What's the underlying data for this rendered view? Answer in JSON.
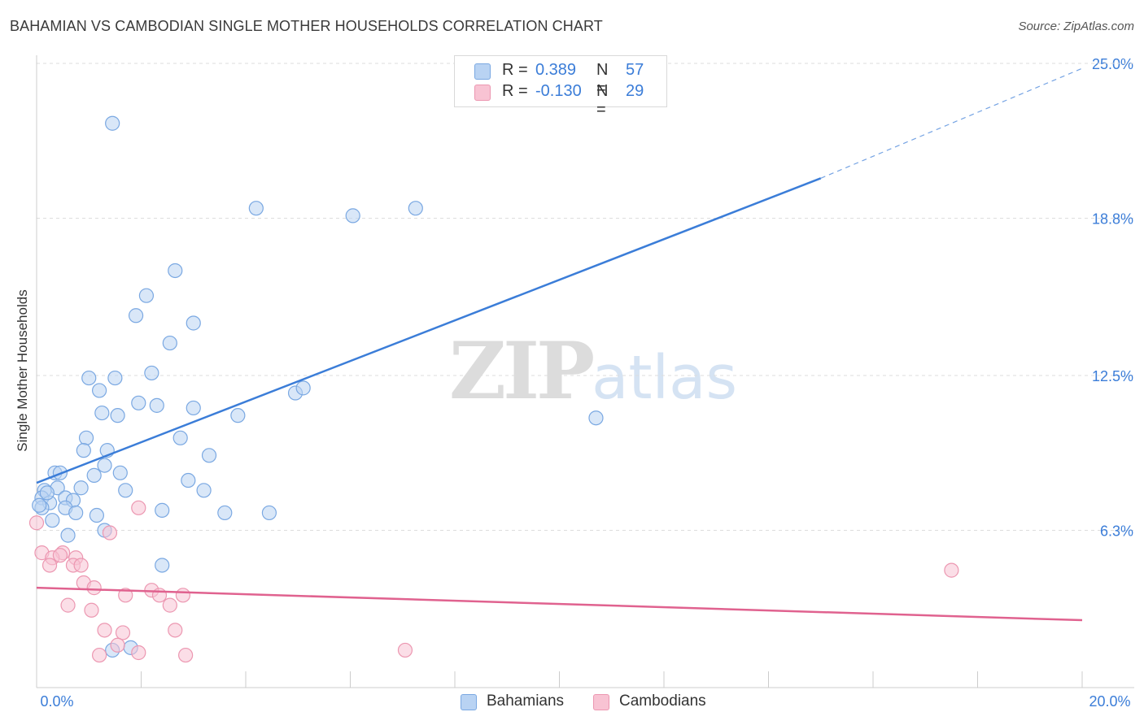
{
  "title": "BAHAMIAN VS CAMBODIAN SINGLE MOTHER HOUSEHOLDS CORRELATION CHART",
  "source": "Source: ZipAtlas.com",
  "watermark": {
    "zip": "ZIP",
    "atlas": "atlas"
  },
  "legend": {
    "series": [
      {
        "r_label": "R =",
        "r_value": "0.389",
        "n_label": "N =",
        "n_value": "57",
        "fill": "#b9d3f3",
        "stroke": "#7aa8e2"
      },
      {
        "r_label": "R =",
        "r_value": "-0.130",
        "n_label": "N =",
        "n_value": "29",
        "fill": "#f8c3d3",
        "stroke": "#ec97b1"
      }
    ]
  },
  "bottom_legend": [
    "Bahamians",
    "Cambodians"
  ],
  "chart_data": {
    "type": "scatter",
    "title": "BAHAMIAN VS CAMBODIAN SINGLE MOTHER HOUSEHOLDS CORRELATION CHART",
    "xlabel": "",
    "ylabel": "Single Mother Households",
    "xlim": [
      0,
      20
    ],
    "ylim": [
      0,
      25
    ],
    "x_tick_labels": [
      "0.0%",
      "20.0%"
    ],
    "y_ticks": [
      6.3,
      12.5,
      18.8,
      25.0
    ],
    "y_tick_labels": [
      "6.3%",
      "12.5%",
      "18.8%",
      "25.0%"
    ],
    "grid": true,
    "colors": {
      "blue": "#3b7dd8",
      "pink": "#e0628f",
      "grid": "#dddddd",
      "axis_text": "#3b7dd8"
    },
    "series": [
      {
        "name": "Bahamians",
        "fill": "#b9d3f3",
        "stroke": "#7aa8e2",
        "points": [
          [
            1.45,
            22.6
          ],
          [
            4.2,
            19.2
          ],
          [
            6.05,
            18.9
          ],
          [
            7.25,
            19.2
          ],
          [
            2.65,
            16.7
          ],
          [
            2.1,
            15.7
          ],
          [
            1.9,
            14.9
          ],
          [
            3.0,
            14.6
          ],
          [
            2.55,
            13.8
          ],
          [
            1.0,
            12.4
          ],
          [
            1.5,
            12.4
          ],
          [
            2.2,
            12.6
          ],
          [
            1.2,
            11.9
          ],
          [
            1.95,
            11.4
          ],
          [
            2.3,
            11.3
          ],
          [
            1.25,
            11.0
          ],
          [
            1.55,
            10.9
          ],
          [
            3.0,
            11.2
          ],
          [
            3.85,
            10.9
          ],
          [
            4.95,
            11.8
          ],
          [
            5.1,
            12.0
          ],
          [
            10.7,
            10.8
          ],
          [
            0.95,
            10.0
          ],
          [
            2.75,
            10.0
          ],
          [
            0.9,
            9.5
          ],
          [
            1.35,
            9.5
          ],
          [
            3.3,
            9.3
          ],
          [
            0.35,
            8.6
          ],
          [
            0.45,
            8.6
          ],
          [
            1.3,
            8.9
          ],
          [
            1.6,
            8.6
          ],
          [
            1.1,
            8.5
          ],
          [
            2.9,
            8.3
          ],
          [
            0.15,
            7.9
          ],
          [
            0.4,
            8.0
          ],
          [
            0.85,
            8.0
          ],
          [
            1.7,
            7.9
          ],
          [
            0.1,
            7.6
          ],
          [
            0.55,
            7.6
          ],
          [
            0.7,
            7.5
          ],
          [
            3.2,
            7.9
          ],
          [
            0.25,
            7.4
          ],
          [
            0.1,
            7.2
          ],
          [
            0.55,
            7.2
          ],
          [
            0.75,
            7.0
          ],
          [
            1.15,
            6.9
          ],
          [
            2.4,
            7.1
          ],
          [
            3.6,
            7.0
          ],
          [
            4.45,
            7.0
          ],
          [
            0.3,
            6.7
          ],
          [
            1.3,
            6.3
          ],
          [
            0.6,
            6.1
          ],
          [
            2.4,
            4.9
          ],
          [
            1.45,
            1.5
          ],
          [
            1.8,
            1.6
          ],
          [
            0.2,
            7.8
          ],
          [
            0.05,
            7.3
          ]
        ]
      },
      {
        "name": "Cambodians",
        "fill": "#f8c3d3",
        "stroke": "#ec97b1",
        "points": [
          [
            0.0,
            6.6
          ],
          [
            1.95,
            7.2
          ],
          [
            1.4,
            6.2
          ],
          [
            0.1,
            5.4
          ],
          [
            0.5,
            5.4
          ],
          [
            0.3,
            5.2
          ],
          [
            0.75,
            5.2
          ],
          [
            0.45,
            5.3
          ],
          [
            0.25,
            4.9
          ],
          [
            0.7,
            4.9
          ],
          [
            0.85,
            4.9
          ],
          [
            0.9,
            4.2
          ],
          [
            1.1,
            4.0
          ],
          [
            2.2,
            3.9
          ],
          [
            2.35,
            3.7
          ],
          [
            2.8,
            3.7
          ],
          [
            1.7,
            3.7
          ],
          [
            0.6,
            3.3
          ],
          [
            1.05,
            3.1
          ],
          [
            2.55,
            3.3
          ],
          [
            1.3,
            2.3
          ],
          [
            1.65,
            2.2
          ],
          [
            2.65,
            2.3
          ],
          [
            1.55,
            1.7
          ],
          [
            1.2,
            1.3
          ],
          [
            1.95,
            1.4
          ],
          [
            2.85,
            1.3
          ],
          [
            7.05,
            1.5
          ],
          [
            17.5,
            4.7
          ]
        ]
      }
    ],
    "trend_lines": [
      {
        "series": "Bahamians",
        "x": [
          0,
          15
        ],
        "y": [
          8.2,
          20.4
        ],
        "dashed_to": [
          20,
          24.8
        ]
      },
      {
        "series": "Cambodians",
        "x": [
          0,
          20
        ],
        "y": [
          4.0,
          2.7
        ]
      }
    ]
  }
}
